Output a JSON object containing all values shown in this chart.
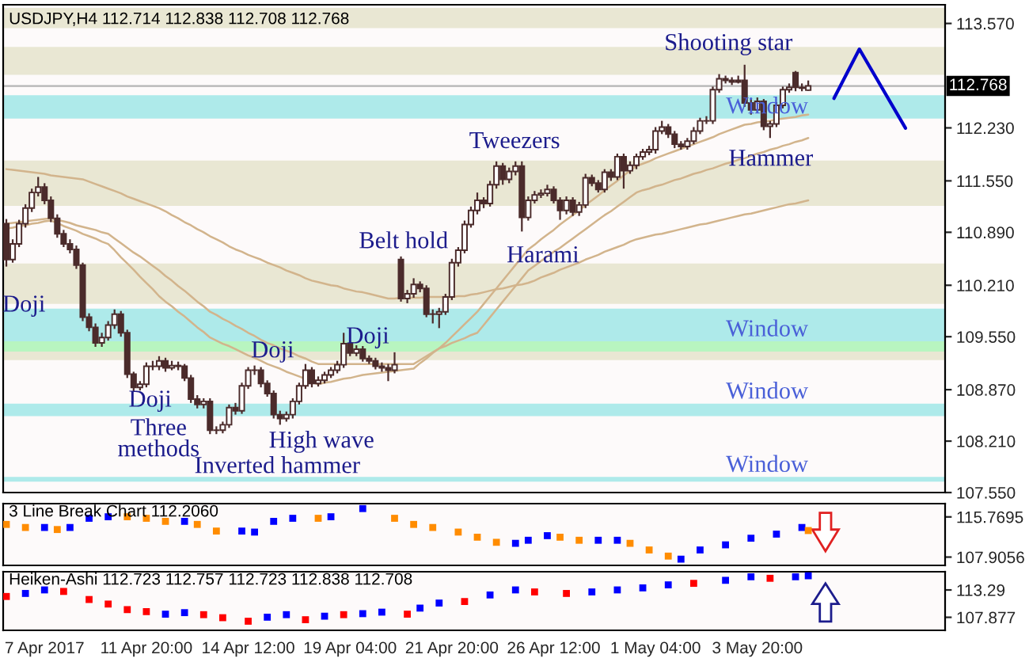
{
  "chart_data": [
    {
      "type": "candlestick",
      "title": "USDJPY,H4 112.714 112.838 112.708 112.768",
      "color": "#4b2b2b",
      "categories": [
        null,
        null,
        null,
        null,
        null,
        null,
        null,
        null,
        null,
        null,
        null,
        null,
        null,
        null,
        null,
        null,
        null,
        null,
        null,
        null,
        null,
        null,
        null,
        null,
        null,
        null,
        null,
        null,
        null,
        null,
        null,
        null,
        null,
        null,
        null,
        null,
        null,
        null,
        null,
        null,
        null,
        null,
        null,
        null,
        null,
        null,
        null,
        null,
        null,
        null,
        null,
        null,
        null,
        null,
        null,
        null,
        null,
        null,
        null,
        null,
        null,
        null,
        null,
        null,
        null,
        null,
        null,
        null,
        null,
        null,
        null,
        null,
        null,
        null,
        null,
        null,
        null,
        null,
        null,
        null,
        null,
        null,
        null,
        null,
        null,
        null,
        null,
        null,
        null,
        null,
        null,
        null,
        null,
        null,
        null,
        null,
        null,
        null,
        null,
        null,
        null,
        null,
        null,
        null,
        null,
        null,
        null,
        null,
        null,
        null,
        null,
        null,
        null,
        null,
        null,
        null,
        null,
        null,
        null,
        null,
        null,
        null,
        null,
        null,
        null,
        null,
        null,
        null,
        null,
        null,
        null,
        null,
        null,
        null,
        null,
        null,
        null,
        null,
        null,
        null,
        null,
        null,
        null,
        null,
        null,
        null,
        null,
        null
      ],
      "ohlc": [
        [
          111.0,
          111.06,
          110.45,
          110.54
        ],
        [
          110.54,
          110.8,
          110.5,
          110.74
        ],
        [
          110.74,
          111.05,
          110.7,
          111.0
        ],
        [
          111.0,
          111.25,
          110.95,
          111.2
        ],
        [
          111.2,
          111.45,
          111.15,
          111.4
        ],
        [
          111.4,
          111.6,
          111.35,
          111.47
        ],
        [
          111.47,
          111.52,
          111.25,
          111.3
        ],
        [
          111.3,
          111.35,
          111.02,
          111.07
        ],
        [
          111.07,
          111.12,
          110.82,
          110.87
        ],
        [
          110.87,
          110.92,
          110.7,
          110.74
        ],
        [
          110.74,
          110.8,
          110.62,
          110.67
        ],
        [
          110.67,
          110.72,
          110.42,
          110.47
        ],
        [
          110.47,
          110.5,
          109.75,
          109.8
        ],
        [
          109.8,
          109.85,
          109.62,
          109.67
        ],
        [
          109.67,
          109.72,
          109.42,
          109.47
        ],
        [
          109.47,
          109.6,
          109.42,
          109.54
        ],
        [
          109.54,
          109.75,
          109.5,
          109.7
        ],
        [
          109.7,
          109.9,
          109.65,
          109.84
        ],
        [
          109.84,
          109.88,
          109.55,
          109.6
        ],
        [
          109.6,
          109.64,
          109.02,
          109.07
        ],
        [
          109.07,
          109.1,
          108.85,
          108.9
        ],
        [
          108.9,
          108.98,
          108.86,
          108.94
        ],
        [
          108.94,
          109.22,
          108.9,
          109.17
        ],
        [
          109.17,
          109.24,
          109.12,
          109.17
        ],
        [
          109.17,
          109.3,
          109.12,
          109.24
        ],
        [
          109.24,
          109.28,
          109.1,
          109.15
        ],
        [
          109.15,
          109.24,
          109.12,
          109.18
        ],
        [
          109.18,
          109.23,
          109.12,
          109.17
        ],
        [
          109.17,
          109.2,
          108.98,
          109.02
        ],
        [
          109.02,
          109.06,
          108.7,
          108.75
        ],
        [
          108.75,
          108.8,
          108.63,
          108.68
        ],
        [
          108.68,
          108.76,
          108.63,
          108.72
        ],
        [
          108.72,
          108.76,
          108.3,
          108.35
        ],
        [
          108.35,
          108.4,
          108.3,
          108.35
        ],
        [
          108.35,
          108.46,
          108.31,
          108.42
        ],
        [
          108.42,
          108.68,
          108.38,
          108.64
        ],
        [
          108.64,
          108.7,
          108.55,
          108.6
        ],
        [
          108.6,
          108.96,
          108.56,
          108.92
        ],
        [
          108.92,
          109.16,
          108.88,
          109.12
        ],
        [
          109.12,
          109.18,
          109.06,
          109.12
        ],
        [
          109.12,
          109.16,
          108.9,
          108.95
        ],
        [
          108.95,
          108.99,
          108.78,
          108.82
        ],
        [
          108.82,
          108.86,
          108.5,
          108.55
        ],
        [
          108.55,
          108.6,
          108.42,
          108.5
        ],
        [
          108.5,
          108.59,
          108.46,
          108.55
        ],
        [
          108.55,
          108.76,
          108.5,
          108.72
        ],
        [
          108.72,
          108.96,
          108.68,
          108.92
        ],
        [
          108.92,
          109.2,
          108.88,
          109.12
        ],
        [
          109.12,
          109.16,
          108.9,
          108.95
        ],
        [
          108.95,
          109.04,
          108.91,
          108.99
        ],
        [
          108.99,
          109.1,
          108.95,
          109.06
        ],
        [
          109.06,
          109.16,
          109.02,
          109.12
        ],
        [
          109.12,
          109.24,
          109.08,
          109.19
        ],
        [
          109.19,
          109.6,
          109.15,
          109.46
        ],
        [
          109.46,
          109.5,
          109.3,
          109.34
        ],
        [
          109.34,
          109.44,
          109.3,
          109.39
        ],
        [
          109.39,
          109.43,
          109.23,
          109.27
        ],
        [
          109.27,
          109.31,
          109.2,
          109.24
        ],
        [
          109.24,
          109.28,
          109.13,
          109.17
        ],
        [
          109.17,
          109.22,
          109.1,
          109.15
        ],
        [
          109.15,
          109.2,
          108.98,
          109.12
        ],
        [
          109.12,
          109.35,
          109.08,
          109.19
        ],
        [
          110.54,
          110.58,
          110.0,
          110.04
        ],
        [
          110.04,
          110.15,
          109.98,
          110.1
        ],
        [
          110.1,
          110.3,
          110.05,
          110.22
        ],
        [
          110.22,
          110.26,
          110.12,
          110.17
        ],
        [
          110.17,
          110.21,
          109.8,
          109.84
        ],
        [
          109.84,
          109.9,
          109.72,
          109.84
        ],
        [
          109.84,
          109.92,
          109.66,
          109.87
        ],
        [
          109.87,
          110.1,
          109.83,
          110.06
        ],
        [
          110.06,
          110.55,
          110.02,
          110.5
        ],
        [
          110.5,
          110.7,
          110.45,
          110.66
        ],
        [
          110.66,
          111.04,
          110.62,
          110.99
        ],
        [
          110.99,
          111.22,
          110.95,
          111.17
        ],
        [
          111.17,
          111.4,
          111.12,
          111.3
        ],
        [
          111.3,
          111.34,
          111.2,
          111.26
        ],
        [
          111.26,
          111.55,
          111.22,
          111.5
        ],
        [
          111.5,
          111.8,
          111.45,
          111.74
        ],
        [
          111.74,
          111.78,
          111.5,
          111.57
        ],
        [
          111.57,
          111.72,
          111.52,
          111.67
        ],
        [
          111.67,
          111.8,
          111.62,
          111.74
        ],
        [
          111.74,
          111.8,
          110.9,
          111.08
        ],
        [
          111.08,
          111.35,
          111.04,
          111.3
        ],
        [
          111.3,
          111.42,
          111.26,
          111.37
        ],
        [
          111.37,
          111.44,
          111.33,
          111.39
        ],
        [
          111.39,
          111.5,
          111.35,
          111.44
        ],
        [
          111.44,
          111.48,
          111.26,
          111.3
        ],
        [
          111.3,
          111.34,
          111.05,
          111.17
        ],
        [
          111.17,
          111.35,
          111.12,
          111.3
        ],
        [
          111.3,
          111.34,
          111.1,
          111.15
        ],
        [
          111.15,
          111.28,
          111.1,
          111.24
        ],
        [
          111.24,
          111.64,
          111.2,
          111.59
        ],
        [
          111.59,
          111.63,
          111.48,
          111.52
        ],
        [
          111.52,
          111.56,
          111.4,
          111.44
        ],
        [
          111.44,
          111.7,
          111.4,
          111.66
        ],
        [
          111.66,
          111.7,
          111.55,
          111.6
        ],
        [
          111.6,
          111.9,
          111.56,
          111.86
        ],
        [
          111.86,
          111.9,
          111.45,
          111.68
        ],
        [
          111.68,
          111.8,
          111.64,
          111.75
        ],
        [
          111.75,
          111.9,
          111.7,
          111.86
        ],
        [
          111.86,
          111.96,
          111.82,
          111.92
        ],
        [
          111.92,
          112.0,
          111.88,
          111.95
        ],
        [
          111.95,
          112.24,
          111.9,
          112.19
        ],
        [
          112.19,
          112.32,
          112.15,
          112.24
        ],
        [
          112.24,
          112.28,
          112.1,
          112.15
        ],
        [
          112.15,
          112.19,
          111.97,
          112.02
        ],
        [
          112.02,
          112.06,
          111.95,
          111.99
        ],
        [
          111.99,
          112.1,
          111.95,
          112.06
        ],
        [
          112.06,
          112.24,
          112.02,
          112.19
        ],
        [
          112.19,
          112.36,
          112.15,
          112.32
        ],
        [
          112.32,
          112.38,
          112.28,
          112.32
        ],
        [
          112.32,
          112.76,
          112.28,
          112.72
        ],
        [
          112.72,
          112.92,
          112.68,
          112.86
        ],
        [
          112.86,
          112.9,
          112.8,
          112.84
        ],
        [
          112.84,
          112.88,
          112.78,
          112.82
        ],
        [
          112.82,
          112.9,
          112.8,
          112.84
        ],
        [
          112.84,
          113.04,
          112.5,
          112.55
        ],
        [
          112.55,
          112.6,
          112.4,
          112.46
        ],
        [
          112.46,
          112.62,
          112.42,
          112.57
        ],
        [
          112.57,
          112.6,
          112.2,
          112.25
        ],
        [
          112.25,
          112.32,
          112.1,
          112.28
        ],
        [
          112.28,
          112.56,
          112.24,
          112.52
        ],
        [
          112.52,
          112.76,
          112.48,
          112.72
        ],
        [
          112.72,
          112.8,
          112.68,
          112.75
        ],
        [
          112.94,
          112.96,
          112.7,
          112.75
        ],
        [
          112.75,
          112.8,
          112.7,
          112.74
        ],
        [
          112.714,
          112.838,
          112.708,
          112.768
        ],
        null,
        null,
        null,
        null,
        null,
        null,
        null,
        null,
        null,
        null,
        null,
        null,
        null,
        null,
        null,
        null,
        null,
        null,
        null,
        null,
        null
      ],
      "series": [
        {
          "type": "line",
          "color": "#d2b48c",
          "values": [
            111.7,
            111.69,
            111.68,
            111.67,
            111.66,
            111.65,
            111.64,
            111.62,
            111.61,
            111.6,
            111.59,
            111.58,
            111.57,
            111.54,
            111.51,
            111.48,
            111.45,
            111.42,
            111.39,
            111.35,
            111.32,
            111.29,
            111.26,
            111.23,
            111.2,
            111.16,
            111.11,
            111.07,
            111.02,
            110.98,
            110.93,
            110.89,
            110.84,
            110.8,
            110.76,
            110.71,
            110.67,
            110.64,
            110.6,
            110.57,
            110.54,
            110.5,
            110.47,
            110.44,
            110.4,
            110.37,
            110.34,
            110.3,
            110.27,
            110.25,
            110.23,
            110.21,
            110.2,
            110.17,
            110.15,
            110.13,
            110.12,
            110.1,
            110.08,
            110.06,
            110.04,
            110.04,
            110.05,
            110.05,
            110.05,
            110.05,
            110.06,
            110.06,
            110.06,
            110.06,
            110.06,
            110.07,
            110.07,
            110.09,
            110.1,
            110.12,
            110.14,
            110.16,
            110.17,
            110.19,
            110.21,
            110.22,
            110.24,
            110.27,
            110.31,
            110.34,
            110.37,
            110.41,
            110.44,
            110.47,
            110.5,
            110.54,
            110.57,
            110.6,
            110.64,
            110.67,
            110.7,
            110.73,
            110.77,
            110.8,
            110.82,
            110.84,
            110.86,
            110.87,
            110.89,
            110.91,
            110.93,
            110.95,
            110.97,
            110.99,
            111.0,
            111.02,
            111.04,
            111.06,
            111.08,
            111.1,
            111.12,
            111.13,
            111.15,
            111.17,
            111.19,
            111.21,
            111.23,
            111.25,
            111.26,
            111.28,
            111.3,
            null,
            null,
            null,
            null,
            null,
            null,
            null,
            null,
            null,
            null,
            null,
            null,
            null,
            null,
            null,
            null,
            null,
            null,
            null,
            null,
            null
          ]
        },
        {
          "type": "line",
          "color": "#d2b48c",
          "values": [
            111.0,
            111.01,
            111.02,
            111.03,
            111.04,
            111.05,
            111.06,
            111.07,
            111.05,
            111.03,
            111.01,
            110.98,
            110.96,
            110.94,
            110.92,
            110.89,
            110.87,
            110.81,
            110.75,
            110.69,
            110.63,
            110.58,
            110.52,
            110.46,
            110.4,
            110.33,
            110.27,
            110.2,
            110.14,
            110.07,
            110.0,
            109.94,
            109.87,
            109.83,
            109.78,
            109.74,
            109.69,
            109.65,
            109.6,
            109.56,
            109.51,
            109.47,
            109.44,
            109.4,
            109.37,
            109.34,
            109.3,
            109.27,
            109.23,
            109.2,
            109.2,
            109.2,
            109.2,
            109.2,
            109.2,
            109.2,
            109.2,
            109.2,
            109.2,
            109.2,
            109.2,
            109.2,
            109.2,
            109.2,
            109.2,
            109.25,
            109.3,
            109.35,
            109.4,
            109.43,
            109.47,
            109.5,
            109.53,
            109.57,
            109.6,
            109.7,
            109.8,
            109.9,
            110.0,
            110.1,
            110.2,
            110.3,
            110.4,
            110.46,
            110.52,
            110.58,
            110.64,
            110.69,
            110.75,
            110.81,
            110.87,
            110.93,
            110.99,
            111.05,
            111.11,
            111.16,
            111.22,
            111.28,
            111.34,
            111.4,
            111.43,
            111.45,
            111.48,
            111.5,
            111.53,
            111.56,
            111.58,
            111.61,
            111.64,
            111.66,
            111.69,
            111.71,
            111.74,
            111.77,
            111.79,
            111.82,
            111.84,
            111.87,
            111.9,
            111.92,
            111.95,
            111.97,
            112.0,
            112.02,
            112.05,
            112.07,
            112.1,
            null,
            null,
            null,
            null,
            null,
            null,
            null,
            null,
            null,
            null,
            null,
            null,
            null,
            null,
            null,
            null,
            null,
            null,
            null,
            null,
            null
          ]
        },
        {
          "type": "line",
          "color": "#d2b48c",
          "values": [
            110.94,
            110.95,
            110.97,
            110.98,
            111.0,
            111.01,
            111.03,
            111.04,
            111.01,
            110.97,
            110.94,
            110.91,
            110.87,
            110.84,
            110.81,
            110.77,
            110.74,
            110.66,
            110.57,
            110.49,
            110.41,
            110.32,
            110.24,
            110.16,
            110.07,
            110.0,
            109.94,
            109.87,
            109.81,
            109.74,
            109.67,
            109.61,
            109.54,
            109.5,
            109.46,
            109.43,
            109.39,
            109.35,
            109.31,
            109.28,
            109.24,
            109.2,
            109.17,
            109.14,
            109.1,
            109.07,
            109.04,
            109.01,
            108.97,
            108.94,
            108.96,
            108.97,
            108.99,
            109.01,
            109.02,
            109.04,
            109.06,
            109.07,
            109.08,
            109.09,
            109.1,
            109.11,
            109.12,
            109.13,
            109.14,
            109.21,
            109.27,
            109.34,
            109.4,
            109.47,
            109.55,
            109.63,
            109.71,
            109.79,
            109.87,
            109.97,
            110.07,
            110.17,
            110.27,
            110.37,
            110.47,
            110.57,
            110.67,
            110.73,
            110.8,
            110.86,
            110.92,
            110.99,
            111.05,
            111.11,
            111.17,
            111.24,
            111.3,
            111.36,
            111.43,
            111.49,
            111.55,
            111.62,
            111.68,
            111.74,
            111.77,
            111.8,
            111.84,
            111.87,
            111.9,
            111.93,
            111.96,
            111.99,
            112.02,
            112.05,
            112.08,
            112.11,
            112.15,
            112.18,
            112.21,
            112.24,
            112.27,
            112.28,
            112.3,
            112.31,
            112.32,
            112.34,
            112.35,
            112.36,
            112.37,
            112.39,
            112.4,
            null,
            null,
            null,
            null,
            null,
            null,
            null,
            null,
            null,
            null,
            null,
            null,
            null,
            null,
            null,
            null,
            null,
            null,
            null,
            null,
            null
          ]
        }
      ],
      "ylim": [
        107.55,
        113.81
      ],
      "yticks": [
        {
          "value": 113.57,
          "label": "113.570"
        },
        {
          "value": 112.23,
          "label": "112.230"
        },
        {
          "value": 111.55,
          "label": "111.550"
        },
        {
          "value": 110.89,
          "label": "110.890"
        },
        {
          "value": 110.21,
          "label": "110.210"
        },
        {
          "value": 109.55,
          "label": "109.550"
        },
        {
          "value": 108.87,
          "label": "108.870"
        },
        {
          "value": 108.21,
          "label": "108.210"
        },
        {
          "value": 107.55,
          "label": "107.550"
        }
      ],
      "tick_labels": "y",
      "ref_lines": [
        {
          "axis": "y",
          "value": 112.768,
          "label": "112.768",
          "color": "#b4b4b4"
        }
      ],
      "bands": [
        {
          "axis": "y",
          "from": 113.51,
          "to": 113.77,
          "color": "#e9e7d3"
        },
        {
          "axis": "y",
          "from": 112.91,
          "to": 113.27,
          "color": "#e9e7d3"
        },
        {
          "axis": "y",
          "from": 112.35,
          "to": 112.65,
          "color": "#aeeaea",
          "label": "Window"
        },
        {
          "axis": "y",
          "from": 111.23,
          "to": 111.81,
          "color": "#e9e7d3"
        },
        {
          "axis": "y",
          "from": 109.97,
          "to": 110.49,
          "color": "#e9e7d3"
        },
        {
          "axis": "y",
          "from": 109.49,
          "to": 109.91,
          "color": "#aeeaea",
          "label": "Window"
        },
        {
          "axis": "y",
          "from": 109.25,
          "to": 109.49,
          "color": "#e9e7d3"
        },
        {
          "axis": "y",
          "from": 109.36,
          "to": 109.49,
          "color": "#b8f5c0"
        },
        {
          "axis": "y",
          "from": 108.53,
          "to": 108.69,
          "color": "#aeeaea",
          "label": "Window"
        },
        {
          "axis": "y",
          "from": 107.69,
          "to": 107.75,
          "color": "#aeeaea",
          "label": "Window"
        }
      ],
      "annotations": [
        "Doji",
        "Doji",
        "Three\nmethods",
        "Inverted hammer",
        "High wave",
        "Doji",
        "Doji",
        "Belt hold",
        "Tweezers",
        "Harami",
        "Shooting star",
        "Hammer"
      ]
    },
    {
      "type": "scatter",
      "title": "3 Line Break Chart 112.2060",
      "marker": "square",
      "categories": [
        null,
        null,
        null,
        null,
        null,
        null,
        null,
        null,
        null,
        null,
        null,
        null,
        null,
        null,
        null,
        null,
        null,
        null,
        null,
        null,
        null,
        null,
        null,
        null,
        null,
        null,
        null,
        null,
        null,
        null,
        null,
        null,
        null,
        null,
        null,
        null,
        null,
        null,
        null,
        null,
        null,
        null,
        null,
        null,
        null,
        null,
        null,
        null,
        null,
        null,
        null,
        null,
        null,
        null,
        null,
        null,
        null,
        null,
        null,
        null,
        null,
        null,
        null,
        null,
        null,
        null,
        null,
        null,
        null,
        null,
        null,
        null,
        null,
        null,
        null,
        null,
        null,
        null,
        null,
        null,
        null,
        null,
        null,
        null,
        null,
        null,
        null,
        null,
        null,
        null,
        null,
        null,
        null,
        null,
        null,
        null,
        null,
        null,
        null,
        null,
        null,
        null,
        null,
        null,
        null,
        null,
        null,
        null,
        null,
        null,
        null,
        null,
        null,
        null,
        null,
        null,
        null,
        null,
        null,
        null,
        null,
        null,
        null,
        null,
        null,
        null,
        null,
        null,
        null,
        null,
        null,
        null,
        null,
        null,
        null,
        null,
        null,
        null,
        null,
        null,
        null,
        null,
        null,
        null,
        null,
        null,
        null,
        null
      ],
      "values": [
        114.3,
        null,
        null,
        113.7,
        null,
        null,
        113.7,
        null,
        113.3,
        null,
        113.7,
        null,
        null,
        115.5,
        null,
        null,
        115.8,
        null,
        null,
        115.8,
        null,
        null,
        115.5,
        null,
        null,
        114.9,
        null,
        null,
        114.9,
        null,
        114.3,
        null,
        null,
        113.0,
        null,
        null,
        null,
        113.0,
        null,
        112.8,
        null,
        null,
        114.9,
        null,
        null,
        115.5,
        null,
        null,
        null,
        115.5,
        null,
        115.8,
        null,
        null,
        null,
        null,
        117.4,
        null,
        null,
        null,
        null,
        115.5,
        null,
        null,
        114.3,
        null,
        null,
        113.7,
        null,
        null,
        null,
        112.8,
        null,
        null,
        111.8,
        null,
        null,
        110.8,
        null,
        null,
        110.6,
        null,
        111.2,
        null,
        null,
        112.1,
        null,
        111.8,
        null,
        null,
        111.2,
        null,
        null,
        111.2,
        null,
        null,
        111.2,
        null,
        110.6,
        null,
        null,
        109.3,
        null,
        null,
        108.1,
        null,
        107.5,
        null,
        null,
        109.3,
        null,
        null,
        null,
        110.3,
        null,
        null,
        null,
        111.6,
        null,
        null,
        null,
        112.4,
        null,
        null,
        null,
        113.7,
        113.1,
        null,
        null,
        null,
        null,
        null,
        null,
        null,
        null,
        null,
        null,
        null,
        null,
        null,
        null,
        null,
        null,
        null,
        null,
        null,
        null,
        null
      ],
      "colors": [
        "#ff8c00",
        null,
        null,
        "#ff8c00",
        null,
        null,
        "#0000ff",
        null,
        "#ff8c00",
        null,
        "#0000ff",
        null,
        null,
        "#0000ff",
        null,
        null,
        "#0000ff",
        null,
        null,
        "#ff8c00",
        null,
        null,
        "#ff8c00",
        null,
        null,
        "#ff8c00",
        null,
        null,
        "#0000ff",
        null,
        "#ff8c00",
        null,
        null,
        "#ff8c00",
        null,
        null,
        null,
        "#0000ff",
        null,
        "#0000ff",
        null,
        null,
        "#0000ff",
        null,
        null,
        "#0000ff",
        null,
        null,
        null,
        "#ff8c00",
        null,
        "#0000ff",
        null,
        null,
        null,
        null,
        "#0000ff",
        null,
        null,
        null,
        null,
        "#ff8c00",
        null,
        null,
        "#ff8c00",
        null,
        null,
        "#ff8c00",
        null,
        null,
        null,
        "#ff8c00",
        null,
        null,
        "#ff8c00",
        null,
        null,
        "#ff8c00",
        null,
        null,
        "#0000ff",
        null,
        "#0000ff",
        null,
        null,
        "#0000ff",
        null,
        "#ff8c00",
        null,
        null,
        "#ff8c00",
        null,
        null,
        "#0000ff",
        null,
        null,
        "#0000ff",
        null,
        "#ff8c00",
        null,
        null,
        "#ff8c00",
        null,
        null,
        "#ff8c00",
        null,
        "#0000ff",
        null,
        null,
        "#0000ff",
        null,
        null,
        null,
        "#0000ff",
        null,
        null,
        null,
        "#0000ff",
        null,
        null,
        null,
        "#0000ff",
        null,
        null,
        null,
        "#0000ff",
        "#ff8c00",
        null,
        null,
        null,
        null,
        null,
        null,
        null,
        null,
        null,
        null,
        null,
        null,
        null,
        null,
        null,
        null,
        null,
        null,
        null,
        null,
        null
      ],
      "ylim": [
        106.28,
        118.37
      ],
      "yticks": [
        {
          "value": 115.7695,
          "label": "115.7695"
        },
        {
          "value": 107.9056,
          "label": "107.9056"
        }
      ],
      "tick_labels": "y"
    },
    {
      "type": "scatter",
      "title": "Heiken-Ashi 112.723 112.757 112.723 112.838 112.708",
      "marker": "square",
      "categories": [
        null,
        null,
        null,
        null,
        null,
        null,
        "7 Apr 2017",
        null,
        null,
        null,
        null,
        null,
        null,
        null,
        null,
        null,
        null,
        null,
        null,
        null,
        null,
        null,
        "11 Apr 20:00",
        null,
        null,
        null,
        null,
        null,
        null,
        null,
        null,
        null,
        null,
        null,
        null,
        null,
        null,
        null,
        "14 Apr 12:00",
        null,
        null,
        null,
        null,
        null,
        null,
        null,
        null,
        null,
        null,
        null,
        null,
        null,
        null,
        null,
        "19 Apr 04:00",
        null,
        null,
        null,
        null,
        null,
        null,
        null,
        null,
        null,
        null,
        null,
        null,
        null,
        null,
        null,
        "21 Apr 20:00",
        null,
        null,
        null,
        null,
        null,
        null,
        null,
        null,
        null,
        null,
        null,
        null,
        null,
        null,
        null,
        "26 Apr 12:00",
        null,
        null,
        null,
        null,
        null,
        null,
        null,
        null,
        null,
        null,
        null,
        null,
        null,
        null,
        null,
        "1 May 04:00",
        null,
        null,
        null,
        null,
        null,
        null,
        null,
        null,
        null,
        null,
        null,
        null,
        null,
        null,
        null,
        "3 May 20:00",
        null,
        null,
        null,
        null,
        null,
        null,
        null,
        null,
        null,
        null,
        null,
        null,
        null,
        null,
        null,
        null,
        null,
        null,
        null,
        null,
        null,
        null,
        null,
        null,
        null,
        null,
        null,
        null,
        null
      ],
      "values": [
        112.0,
        null,
        null,
        112.6,
        null,
        null,
        113.3,
        null,
        null,
        113.0,
        null,
        null,
        null,
        111.4,
        null,
        null,
        110.5,
        null,
        null,
        109.4,
        null,
        null,
        109.0,
        null,
        null,
        108.5,
        null,
        null,
        108.8,
        null,
        null,
        108.4,
        null,
        null,
        107.8,
        null,
        null,
        null,
        107.1,
        null,
        null,
        107.9,
        null,
        null,
        108.4,
        null,
        null,
        107.4,
        null,
        null,
        108.1,
        null,
        null,
        108.4,
        null,
        null,
        108.6,
        null,
        null,
        108.9,
        null,
        null,
        null,
        108.5,
        null,
        109.7,
        null,
        null,
        110.7,
        null,
        null,
        null,
        111.0,
        null,
        null,
        null,
        112.3,
        null,
        null,
        null,
        113.3,
        null,
        null,
        112.9,
        null,
        null,
        null,
        null,
        112.6,
        null,
        null,
        null,
        112.9,
        null,
        null,
        null,
        113.3,
        null,
        null,
        null,
        113.7,
        null,
        null,
        null,
        114.3,
        null,
        null,
        null,
        114.6,
        null,
        null,
        null,
        null,
        115.2,
        null,
        null,
        null,
        115.9,
        null,
        null,
        115.6,
        null,
        null,
        null,
        115.9,
        null,
        116.1,
        null,
        null,
        null,
        null,
        null,
        null,
        null,
        null,
        null,
        null,
        null,
        null,
        null,
        null,
        null,
        null,
        null,
        null,
        null,
        null,
        null
      ],
      "colors": [
        "#ff0000",
        null,
        null,
        "#0000ff",
        null,
        null,
        "#0000ff",
        null,
        null,
        "#ff0000",
        null,
        null,
        null,
        "#ff0000",
        null,
        null,
        "#ff0000",
        null,
        null,
        "#ff0000",
        null,
        null,
        "#ff0000",
        null,
        null,
        "#0000ff",
        null,
        null,
        "#0000ff",
        null,
        null,
        "#ff0000",
        null,
        null,
        "#ff0000",
        null,
        null,
        null,
        "#ff0000",
        null,
        null,
        "#0000ff",
        null,
        null,
        "#0000ff",
        null,
        null,
        "#ff0000",
        null,
        null,
        "#0000ff",
        null,
        null,
        "#ff0000",
        null,
        null,
        "#0000ff",
        null,
        null,
        "#0000ff",
        null,
        null,
        null,
        "#ff0000",
        null,
        "#0000ff",
        null,
        null,
        "#0000ff",
        null,
        null,
        null,
        "#ff0000",
        null,
        null,
        null,
        "#0000ff",
        null,
        null,
        null,
        "#0000ff",
        null,
        null,
        "#ff0000",
        null,
        null,
        null,
        null,
        "#ff0000",
        null,
        null,
        null,
        "#0000ff",
        null,
        null,
        null,
        "#0000ff",
        null,
        null,
        null,
        "#0000ff",
        null,
        null,
        null,
        "#0000ff",
        null,
        null,
        null,
        "#ff0000",
        null,
        null,
        null,
        null,
        "#0000ff",
        null,
        null,
        null,
        "#0000ff",
        null,
        null,
        "#ff0000",
        null,
        null,
        null,
        "#0000ff",
        null,
        "#0000ff",
        null,
        null,
        null,
        null,
        null,
        null,
        null,
        null,
        null,
        null,
        null,
        null,
        null,
        null,
        null,
        null,
        null,
        null,
        null,
        null,
        null
      ],
      "ylim": [
        105.3,
        116.9
      ],
      "yticks": [
        {
          "value": 113.29,
          "label": "113.29"
        },
        {
          "value": 107.877,
          "label": "107.877"
        }
      ]
    }
  ]
}
